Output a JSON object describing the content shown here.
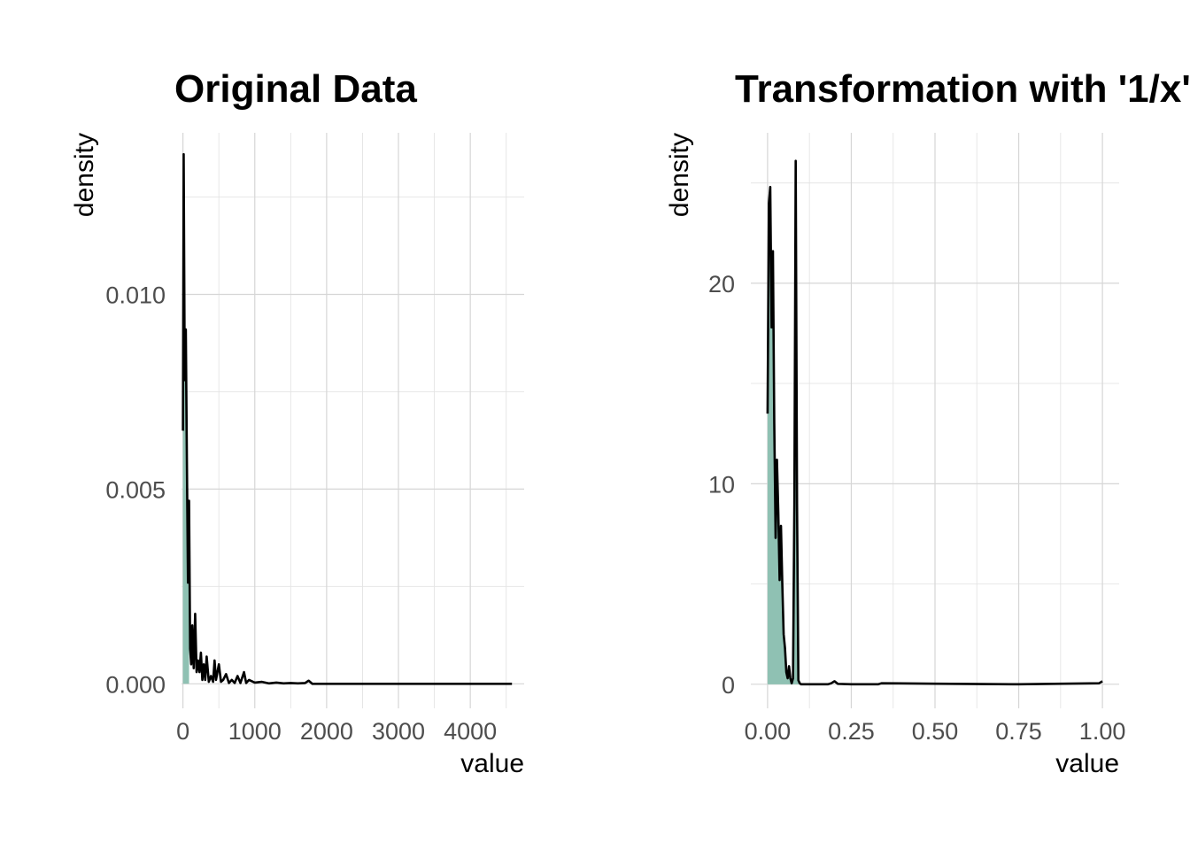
{
  "chart_data": [
    {
      "type": "area",
      "title": "Original Data",
      "xlabel": "value",
      "ylabel": "density",
      "xlim": [
        -20,
        4750
      ],
      "ylim": [
        -0.00063,
        0.01415
      ],
      "x_ticks": [
        0,
        1000,
        2000,
        3000,
        4000
      ],
      "x_tick_labels": [
        "0",
        "1000",
        "2000",
        "3000",
        "4000"
      ],
      "y_ticks": [
        0,
        0.005,
        0.01
      ],
      "y_tick_labels": [
        "0.000",
        "0.005",
        "0.010"
      ],
      "grid": true,
      "fill_color": "#8fc1b3",
      "line_color": "#000000",
      "series": [
        {
          "x": [
            0,
            10,
            25,
            40,
            55,
            70,
            85,
            100,
            115,
            130,
            150,
            170,
            190,
            210,
            230,
            250,
            270,
            290,
            310,
            330,
            360,
            390,
            420,
            440,
            460,
            480,
            500,
            530,
            560,
            600,
            640,
            680,
            720,
            760,
            800,
            850,
            880,
            920,
            1000,
            1100,
            1200,
            1300,
            1400,
            1500,
            1600,
            1700,
            1750,
            1800,
            2000,
            2500,
            3000,
            3500,
            4000,
            4500,
            4580
          ],
          "y": [
            0.0065,
            0.0136,
            0.0078,
            0.0091,
            0.0057,
            0.0026,
            0.0047,
            0.0009,
            0.0005,
            0.0015,
            0.0004,
            0.0018,
            0.0003,
            0.0006,
            0.0003,
            0.0008,
            0.0001,
            0.0005,
            0.0001,
            0.0007,
            5e-05,
            0.0002,
            5e-05,
            0.0006,
            0.0001,
            0.0003,
            0.0005,
            5e-05,
            0.0001,
            0.00025,
            2e-05,
            0.0001,
            2e-05,
            0.0002,
            2e-05,
            0.0003,
            2e-05,
            0.0001,
            3e-05,
            5e-05,
            1e-05,
            3e-05,
            1e-05,
            2e-05,
            1e-05,
            2e-05,
            8e-05,
            0.0,
            0.0,
            0.0,
            0.0,
            0.0,
            0.0,
            0.0,
            0.0
          ],
          "fill_until": 90
        }
      ]
    },
    {
      "type": "area",
      "title": "Transformation with '1/x'",
      "xlabel": "value",
      "ylabel": "density",
      "xlim": [
        -0.05,
        1.05
      ],
      "ylim": [
        -1.2,
        27.5
      ],
      "x_ticks": [
        0,
        0.25,
        0.5,
        0.75,
        1.0
      ],
      "x_tick_labels": [
        "0.00",
        "0.25",
        "0.50",
        "0.75",
        "1.00"
      ],
      "y_ticks": [
        0,
        10,
        20
      ],
      "y_tick_labels": [
        "0",
        "10",
        "20"
      ],
      "grid": true,
      "fill_color": "#8fc1b3",
      "line_color": "#000000",
      "series": [
        {
          "x": [
            0.0,
            0.004,
            0.008,
            0.012,
            0.016,
            0.02,
            0.024,
            0.028,
            0.032,
            0.036,
            0.04,
            0.044,
            0.048,
            0.052,
            0.056,
            0.06,
            0.064,
            0.068,
            0.072,
            0.076,
            0.08,
            0.084,
            0.088,
            0.092,
            0.096,
            0.1,
            0.104,
            0.108,
            0.112,
            0.12,
            0.15,
            0.18,
            0.19,
            0.2,
            0.21,
            0.25,
            0.33,
            0.34,
            0.5,
            0.75,
            0.99,
            1.0
          ],
          "y": [
            13.5,
            24.0,
            24.8,
            17.8,
            21.6,
            13.0,
            7.3,
            11.2,
            8.6,
            5.2,
            7.9,
            5.0,
            2.5,
            1.8,
            0.6,
            0.3,
            0.9,
            0.3,
            0.05,
            0.3,
            9.0,
            26.1,
            9.0,
            0.2,
            0.05,
            0.0,
            0.0,
            0.0,
            0.0,
            0.0,
            0.0,
            0.0,
            0.05,
            0.15,
            0.02,
            0.0,
            0.0,
            0.05,
            0.03,
            0.0,
            0.05,
            0.15
          ],
          "fill_until": 0.1
        }
      ]
    }
  ]
}
